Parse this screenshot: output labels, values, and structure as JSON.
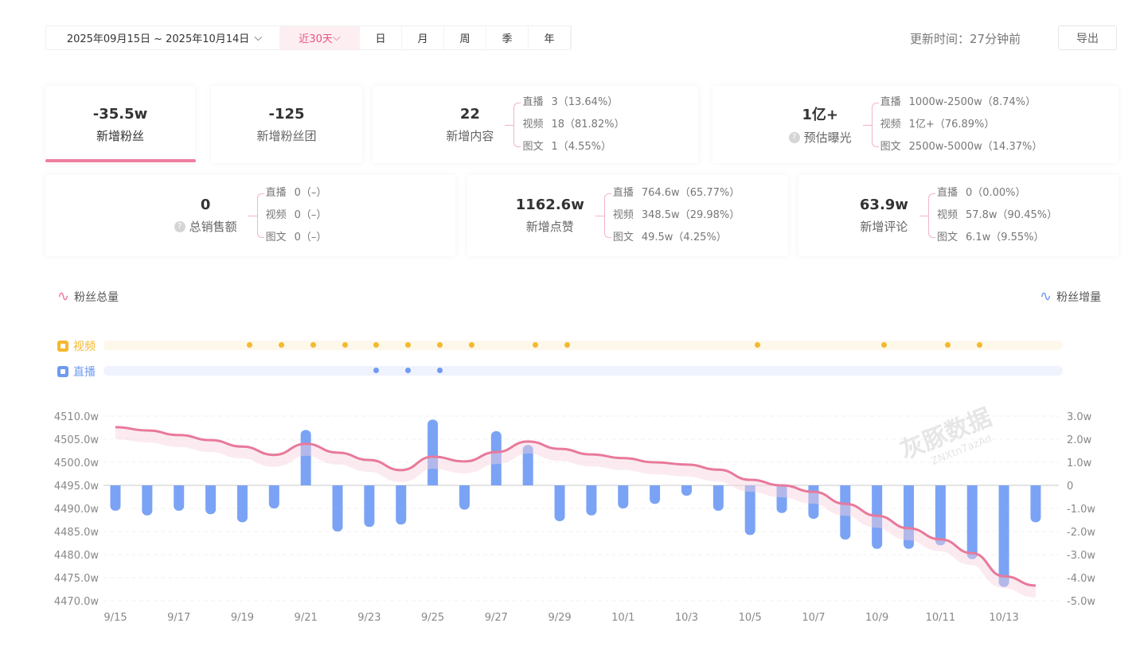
{
  "toolbar": {
    "date_range": "2025年09月15日 ~ 2025年10月14日",
    "tabs": [
      "近30天",
      "日",
      "月",
      "周",
      "季",
      "年"
    ],
    "update_time": "更新时间：27分钟前",
    "export": "导出"
  },
  "cards": [
    {
      "value": "-35.5w",
      "label": "新增粉丝",
      "active": true
    },
    {
      "value": "-125",
      "label": "新增粉丝团"
    },
    {
      "value": "22",
      "label": "新增内容",
      "rows": [
        [
          "直播",
          "3（13.64%）"
        ],
        [
          "视频",
          "18（81.82%）"
        ],
        [
          "图文",
          "1（4.55%）"
        ]
      ]
    },
    {
      "value": "1亿+",
      "label": "预估曝光",
      "help": true,
      "rows": [
        [
          "直播",
          "1000w-2500w（8.74%）"
        ],
        [
          "视频",
          "1亿+（76.89%）"
        ],
        [
          "图文",
          "2500w-5000w（14.37%）"
        ]
      ]
    },
    {
      "value": "0",
      "label": "总销售额",
      "help": true,
      "rows": [
        [
          "直播",
          "0（–）"
        ],
        [
          "视频",
          "0（–）"
        ],
        [
          "图文",
          "0（–）"
        ]
      ]
    },
    {
      "value": "1162.6w",
      "label": "新增点赞",
      "rows": [
        [
          "直播",
          "764.6w（65.77%）"
        ],
        [
          "视频",
          "348.5w（29.98%）"
        ],
        [
          "图文",
          "49.5w（4.25%）"
        ]
      ]
    },
    {
      "value": "63.9w",
      "label": "新增评论",
      "rows": [
        [
          "直播",
          "0（0.00%）"
        ],
        [
          "视频",
          "57.8w（90.45%）"
        ],
        [
          "图文",
          "6.1w（9.55%）"
        ]
      ]
    }
  ],
  "timeline": {
    "video_label": "视频",
    "live_label": "直播",
    "video_dates": [
      "9/19",
      "9/20",
      "9/21",
      "9/22",
      "9/23",
      "9/24",
      "9/25",
      "9/26",
      "9/28",
      "9/29",
      "10/5",
      "10/9",
      "10/11",
      "10/12"
    ],
    "live_dates": [
      "9/23",
      "9/24",
      "9/25"
    ],
    "video_color": "#f5b82e",
    "live_color": "#6f9af0"
  },
  "watermark": {
    "brand": "灰豚数据",
    "code": "ZNXtn7azAd"
  },
  "chart_data": {
    "type": "bar+line",
    "categories": [
      "9/15",
      "9/16",
      "9/17",
      "9/18",
      "9/19",
      "9/20",
      "9/21",
      "9/22",
      "9/23",
      "9/24",
      "9/25",
      "9/26",
      "9/27",
      "9/28",
      "9/29",
      "9/30",
      "10/1",
      "10/2",
      "10/3",
      "10/4",
      "10/5",
      "10/6",
      "10/7",
      "10/8",
      "10/9",
      "10/10",
      "10/11",
      "10/12",
      "10/13",
      "10/14"
    ],
    "series": [
      {
        "name": "粉丝总量",
        "type": "line",
        "axis": "left",
        "color": "#e8799b",
        "unit": "w",
        "values": [
          4507.6,
          4506.9,
          4505.9,
          4504.8,
          4503.4,
          4501.6,
          4504.0,
          4502.1,
          4500.5,
          4498.3,
          4501.2,
          4500.2,
          4502.2,
          4504.5,
          4502.9,
          4501.7,
          4500.9,
          4500.0,
          4499.5,
          4498.4,
          4496.2,
          4495.0,
          4493.6,
          4491.0,
          4488.4,
          4485.7,
          4483.3,
          4480.3,
          4475.3,
          4473.3
        ]
      },
      {
        "name": "粉丝增量",
        "type": "bar",
        "axis": "right",
        "color": "#7ba3f5",
        "unit": "w",
        "values": [
          -1.1,
          -1.3,
          -1.1,
          -1.25,
          -1.6,
          -1.0,
          2.4,
          -2.0,
          -1.8,
          -1.7,
          2.85,
          -1.05,
          2.35,
          1.75,
          -1.55,
          -1.3,
          -1.0,
          -0.8,
          -0.45,
          -1.1,
          -2.15,
          -1.2,
          -1.45,
          -2.35,
          -2.75,
          -2.75,
          -2.6,
          -3.2,
          -4.4,
          -1.6
        ]
      }
    ],
    "left_ticks": [
      "4510.0w",
      "4505.0w",
      "4500.0w",
      "4495.0w",
      "4490.0w",
      "4485.0w",
      "4480.0w",
      "4475.0w",
      "4470.0w"
    ],
    "right_ticks": [
      "3.0w",
      "2.0w",
      "1.0w",
      "0",
      "-1.0w",
      "-2.0w",
      "-3.0w",
      "-4.0w",
      "-5.0w"
    ],
    "x_ticks": [
      "9/15",
      "9/17",
      "9/19",
      "9/21",
      "9/23",
      "9/25",
      "9/27",
      "9/29",
      "10/1",
      "10/3",
      "10/5",
      "10/7",
      "10/9",
      "10/11",
      "10/13"
    ],
    "ylim_left": [
      4470,
      4510
    ],
    "ylim_right": [
      -5,
      3
    ],
    "grid": true,
    "legend": "top-left / top-right"
  }
}
